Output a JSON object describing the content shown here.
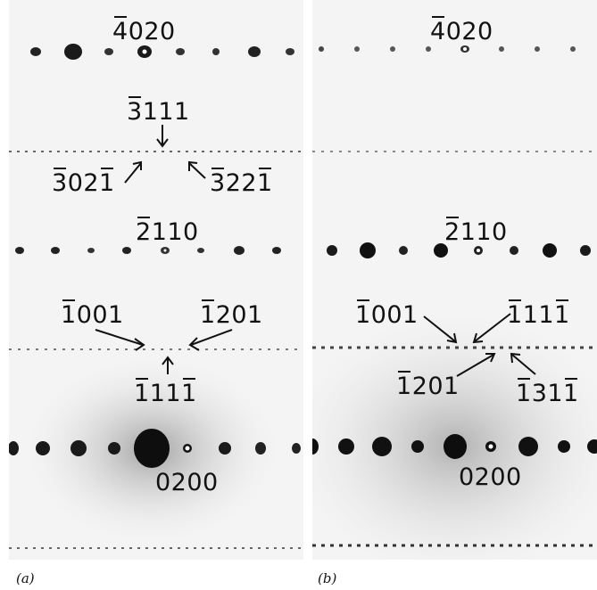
{
  "panel_a": {
    "caption": "(a)",
    "labels": {
      "top": [
        "4020",
        "4",
        "020"
      ],
      "row2_top": [
        "3111",
        "3",
        "111"
      ],
      "row2_left": "3021",
      "row2_right": "3221",
      "row3": [
        "2110",
        "2",
        "110"
      ],
      "row4_left": [
        "1001",
        "1",
        "001"
      ],
      "row4_right": [
        "1201",
        "1",
        "201"
      ],
      "row4_bottom": "1111",
      "origin": "0200"
    }
  },
  "panel_b": {
    "caption": "(b)",
    "labels": {
      "top": "4020",
      "row3": "2110",
      "row4_left": "1001",
      "row4_right": "1111",
      "row4_bl": "1201",
      "row4_br": "1311",
      "origin": "0200"
    }
  },
  "colors": {
    "spot": "#141414",
    "background": "#f4f4f4",
    "halo": "#bdbdbd"
  }
}
